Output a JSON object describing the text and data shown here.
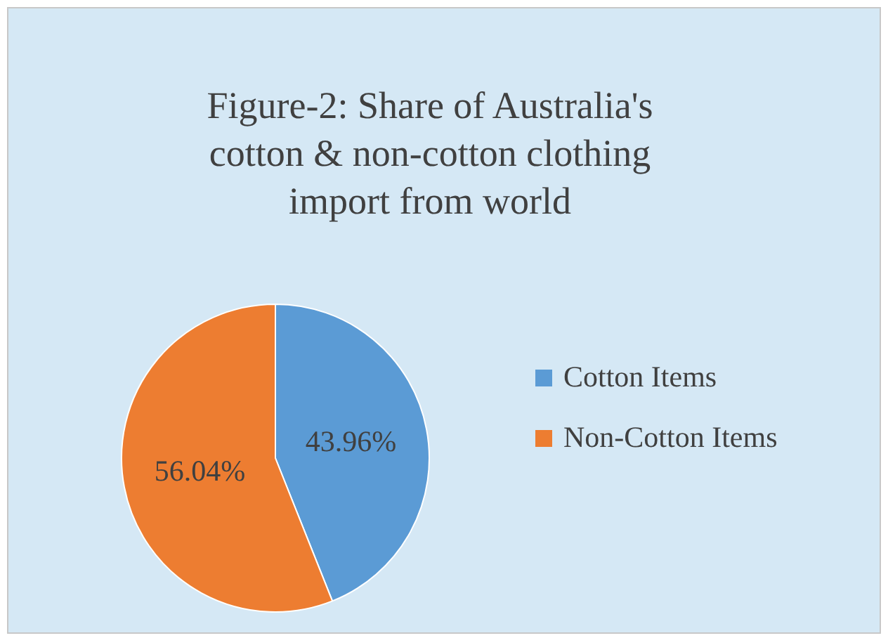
{
  "chart_data": {
    "type": "pie",
    "title": "Figure-2: Share of Australia's cotton & non-cotton clothing import from world",
    "categories": [
      "Cotton Items",
      "Non-Cotton Items"
    ],
    "values": [
      43.96,
      56.04
    ],
    "colors": [
      "#5b9bd5",
      "#ed7d31"
    ],
    "value_labels": [
      "43.96%",
      "56.04%"
    ],
    "legend": "right"
  }
}
